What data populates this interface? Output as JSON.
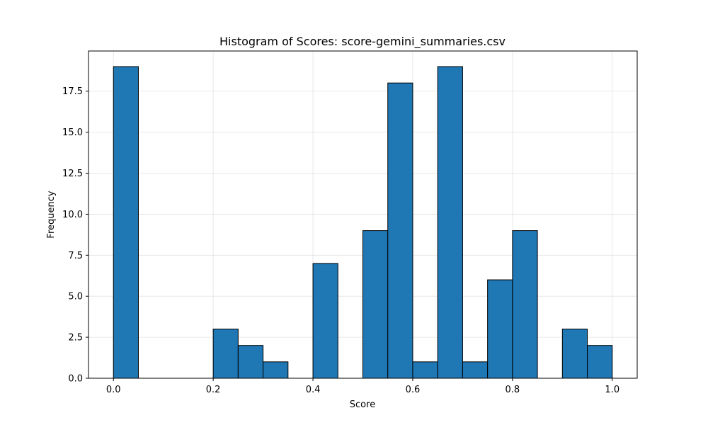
{
  "chart_data": {
    "type": "bar",
    "title": "Histogram of Scores: score-gemini_summaries.csv",
    "xlabel": "Score",
    "ylabel": "Frequency",
    "xlim": [
      -0.05,
      1.05
    ],
    "ylim": [
      0,
      19.95
    ],
    "grid": true,
    "bar_color": "#1f77b4",
    "edge_color": "#000000",
    "bin_width": 0.05,
    "bins": [
      {
        "x": 0.0,
        "value": 19
      },
      {
        "x": 0.05,
        "value": 0
      },
      {
        "x": 0.1,
        "value": 0
      },
      {
        "x": 0.15,
        "value": 0
      },
      {
        "x": 0.2,
        "value": 3
      },
      {
        "x": 0.25,
        "value": 2
      },
      {
        "x": 0.3,
        "value": 1
      },
      {
        "x": 0.35,
        "value": 0
      },
      {
        "x": 0.4,
        "value": 7
      },
      {
        "x": 0.45,
        "value": 0
      },
      {
        "x": 0.5,
        "value": 9
      },
      {
        "x": 0.55,
        "value": 18
      },
      {
        "x": 0.6,
        "value": 1
      },
      {
        "x": 0.65,
        "value": 19
      },
      {
        "x": 0.7,
        "value": 1
      },
      {
        "x": 0.75,
        "value": 6
      },
      {
        "x": 0.8,
        "value": 9
      },
      {
        "x": 0.85,
        "value": 0
      },
      {
        "x": 0.9,
        "value": 3
      },
      {
        "x": 0.95,
        "value": 2
      }
    ],
    "x_ticks": [
      {
        "value": 0.0,
        "label": "0.0"
      },
      {
        "value": 0.2,
        "label": "0.2"
      },
      {
        "value": 0.4,
        "label": "0.4"
      },
      {
        "value": 0.6,
        "label": "0.6"
      },
      {
        "value": 0.8,
        "label": "0.8"
      },
      {
        "value": 1.0,
        "label": "1.0"
      }
    ],
    "y_ticks": [
      {
        "value": 0.0,
        "label": "0.0"
      },
      {
        "value": 2.5,
        "label": "2.5"
      },
      {
        "value": 5.0,
        "label": "5.0"
      },
      {
        "value": 7.5,
        "label": "7.5"
      },
      {
        "value": 10.0,
        "label": "10.0"
      },
      {
        "value": 12.5,
        "label": "12.5"
      },
      {
        "value": 15.0,
        "label": "15.0"
      },
      {
        "value": 17.5,
        "label": "17.5"
      }
    ]
  }
}
